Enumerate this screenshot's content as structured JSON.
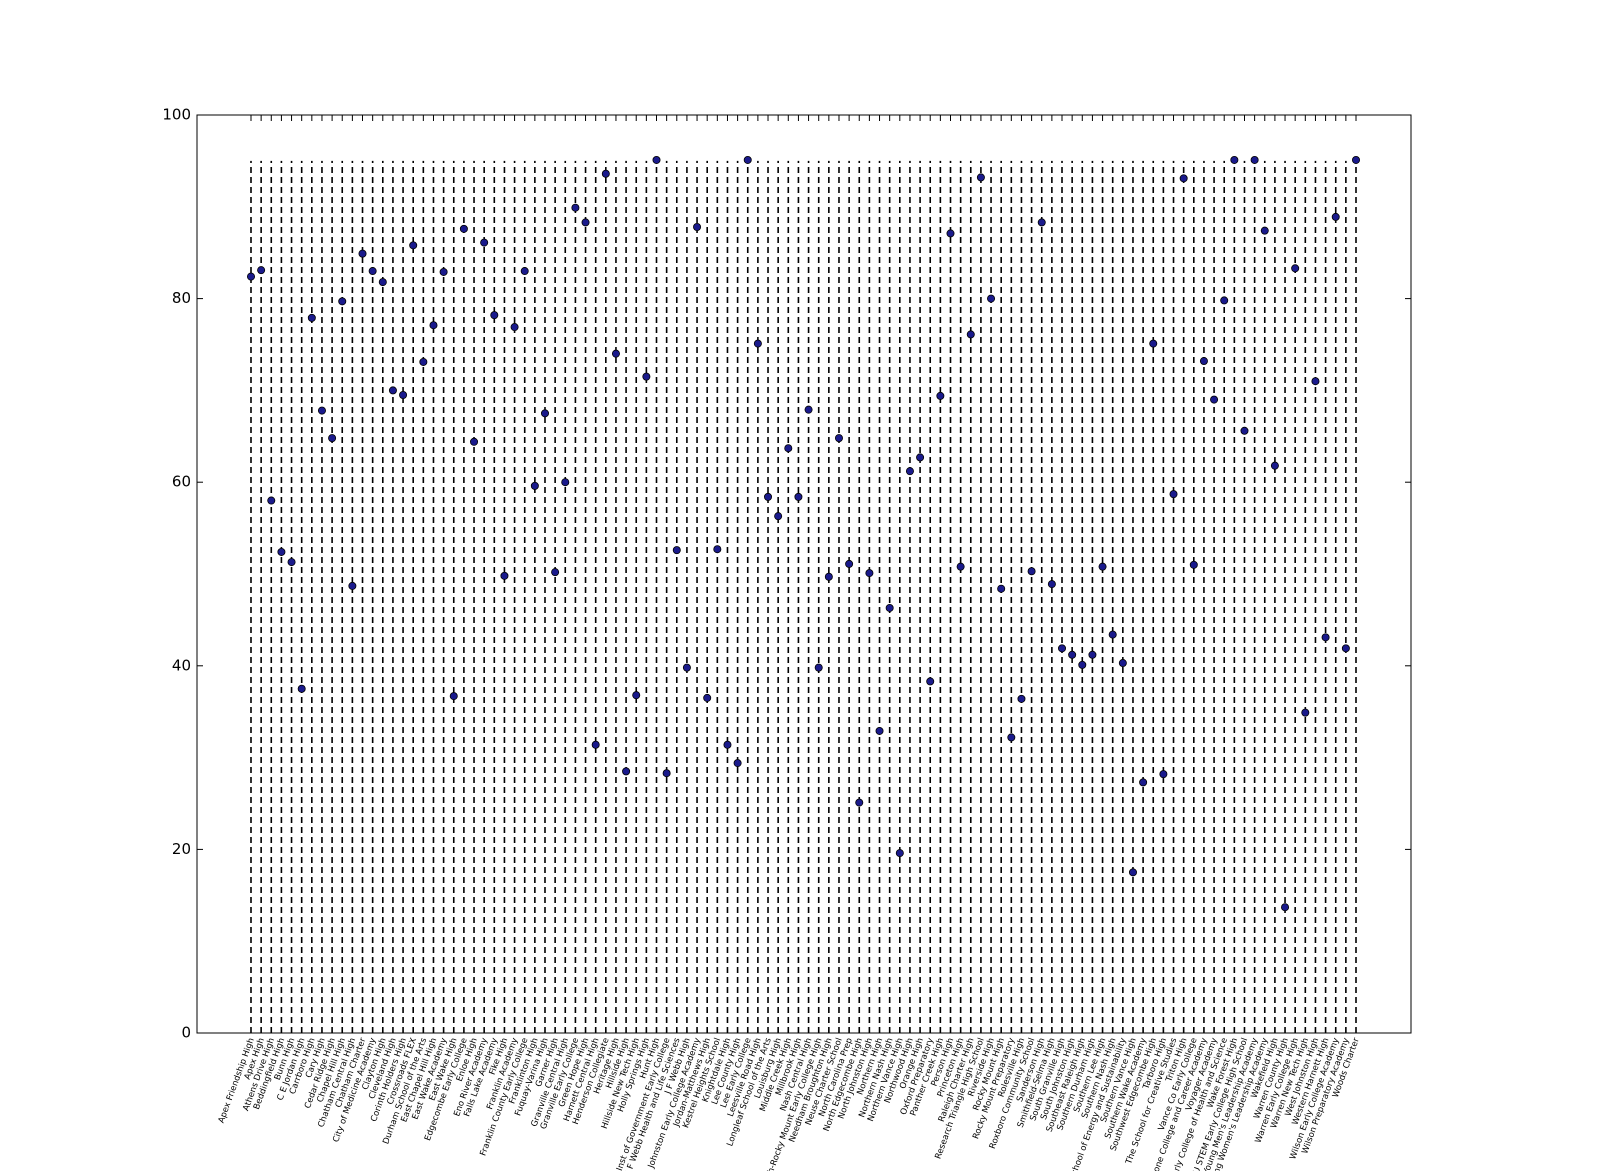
{
  "chart_data": {
    "type": "dot",
    "categories": [
      "Apex Friendship High",
      "Apex High",
      "Athens Drive High",
      "Beddingfield High",
      "Bunn High",
      "C E Jordan High",
      "Carrboro High",
      "Cary High",
      "Cedar Ridge High",
      "Chapel Hill High",
      "Chatham Central High",
      "Chatham Charter",
      "City of Medicine Academy",
      "Clayton High",
      "Cleveland High",
      "Corinth Holders High",
      "Crossroads FLEX",
      "Durham School of the Arts",
      "East Chapel Hill High",
      "East Wake Academy",
      "East Wake High",
      "Edgecombe Early College",
      "Enloe High",
      "Eno River Academy",
      "Falls Lake Academy",
      "Fike High",
      "Franklin Academy",
      "Franklin County Early College",
      "Franklinton High",
      "Fuquay-Varina High",
      "Garner High",
      "Granville Central High",
      "Granville Early College",
      "Green Hope High",
      "Harnett Central High",
      "Henderson Collegiate",
      "Heritage High",
      "Hillside High",
      "Hillside New Tech High",
      "Holly Springs High",
      "Hunt High",
      "Inst of Government Early College",
      "J F Webb Health and Life Sciences",
      "J F Webb High",
      "Johnston Early College Academy",
      "Jordan-Matthews High",
      "Kestrel Heights School",
      "Knightdale High",
      "Lee County High",
      "Lee Early College",
      "Leesville Road High",
      "Longleaf School of the Arts",
      "Louisburg High",
      "Middle Creek High",
      "Millbrook High",
      "Nash Central High",
      "Nash-Rocky Mount Early College High",
      "Needham Broughton High",
      "Neuse Charter School",
      "North Carolina Prep",
      "North Edgecombe High",
      "North Johnston High",
      "Northern High",
      "Northern Nash High",
      "Northern Vance High",
      "Northwood High",
      "Orange High",
      "Oxford Preparatory",
      "Panther Creek High",
      "Person High",
      "Princeton High",
      "Raleigh Charter High",
      "Research Triangle High School",
      "Riverside High",
      "Rocky Mount High",
      "Rocky Mount Preparatory",
      "Rolesville High",
      "Roxboro Community School",
      "Sanderson High",
      "Smithfield-Selma High",
      "South Granville High",
      "South Johnston High",
      "Southeast Raleigh High",
      "Southern Durham High",
      "Southern Lee High",
      "Southern Nash High",
      "Southern School of Energy and Sustainability",
      "Southern Vance High",
      "Southern Wake Academy",
      "Southwest Edgecombe High",
      "Tarboro High",
      "The School for Creative Studies",
      "Triton High",
      "Vance Co Early College",
      "Vernon Malone College and Career Academy",
      "Voyager Academy",
      "Wake Early College of Health and Science",
      "Wake Forest High",
      "Wake NCSU STEM Early College High School",
      "Wake Young Men's Leadership Academy",
      "Wake Young Women's Leadership Academy",
      "Wakefield High",
      "Warren County High",
      "Warren Early College High",
      "Warren New Tech High",
      "West Johnston High",
      "Western Harnett High",
      "Wilson Early College Academy",
      "Wilson Preparatory Academy",
      "Woods Charter"
    ],
    "values": [
      82.4,
      83.1,
      58.0,
      52.4,
      51.3,
      37.5,
      77.9,
      67.8,
      64.8,
      79.7,
      48.7,
      84.9,
      83.0,
      81.8,
      70.0,
      69.5,
      85.8,
      73.1,
      77.1,
      82.9,
      36.7,
      87.6,
      64.4,
      86.1,
      78.2,
      49.8,
      76.9,
      83.0,
      59.6,
      67.5,
      50.2,
      60.0,
      89.9,
      88.3,
      31.4,
      93.6,
      74.0,
      28.5,
      36.8,
      71.5,
      95.1,
      28.3,
      52.6,
      39.8,
      87.8,
      36.5,
      52.7,
      31.4,
      29.4,
      95.1,
      75.1,
      58.4,
      56.3,
      63.7,
      58.4,
      67.9,
      39.8,
      49.7,
      64.8,
      51.1,
      25.1,
      50.1,
      32.9,
      46.3,
      19.6,
      61.2,
      62.7,
      38.3,
      69.4,
      87.1,
      50.8,
      76.1,
      93.2,
      80.0,
      48.4,
      32.2,
      36.4,
      50.3,
      88.3,
      48.9,
      41.9,
      41.2,
      40.1,
      41.2,
      50.8,
      43.4,
      40.3,
      17.5,
      27.3,
      75.1,
      28.2,
      58.7,
      93.1,
      51.0,
      73.2,
      69.0,
      79.8,
      95.1,
      65.6,
      95.1,
      87.4,
      61.8,
      13.7,
      83.3,
      34.9,
      71.0,
      43.1,
      88.9,
      41.9,
      95.1
    ],
    "color": "#1a1a8c",
    "dashed_line_top": 95,
    "ylim": [
      0,
      100
    ],
    "yticks": [
      0,
      20,
      40,
      60,
      80,
      100
    ]
  }
}
